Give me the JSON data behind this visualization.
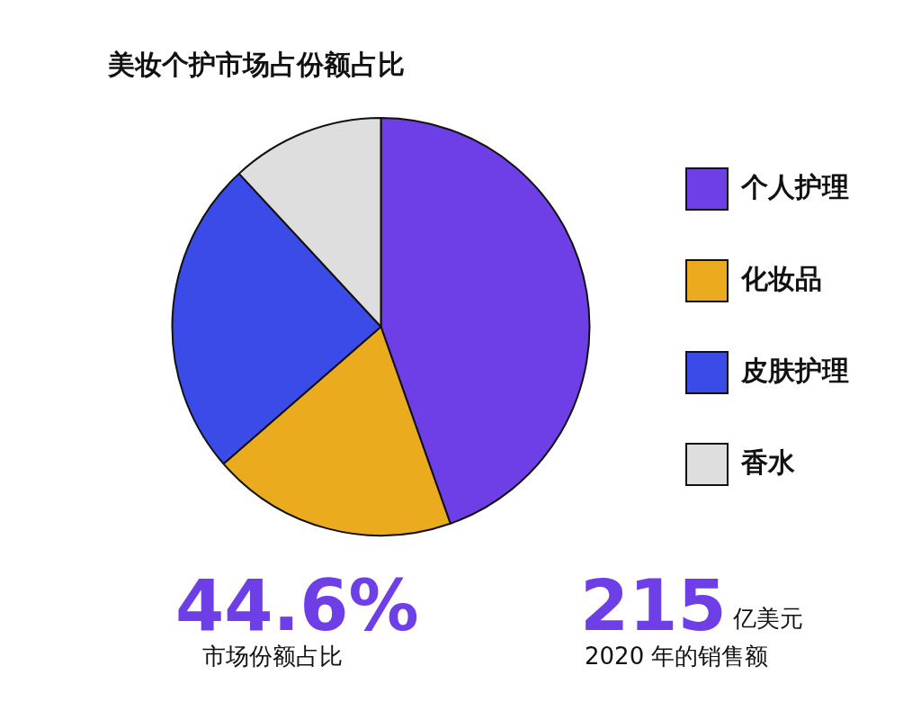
{
  "chart_data": {
    "type": "pie",
    "title": "美妆个护市场占份额占比",
    "categories": [
      "个人护理",
      "化妆品",
      "皮肤护理",
      "香水"
    ],
    "values": [
      44.6,
      19,
      24.5,
      11.9
    ],
    "colors": [
      "#6e3fe6",
      "#ebab1f",
      "#3b4be8",
      "#dedede"
    ],
    "legend": "right",
    "annotations": [
      "44.6%",
      "市场份额占比",
      "215",
      "亿美元",
      "2020 年的销售额"
    ]
  }
}
